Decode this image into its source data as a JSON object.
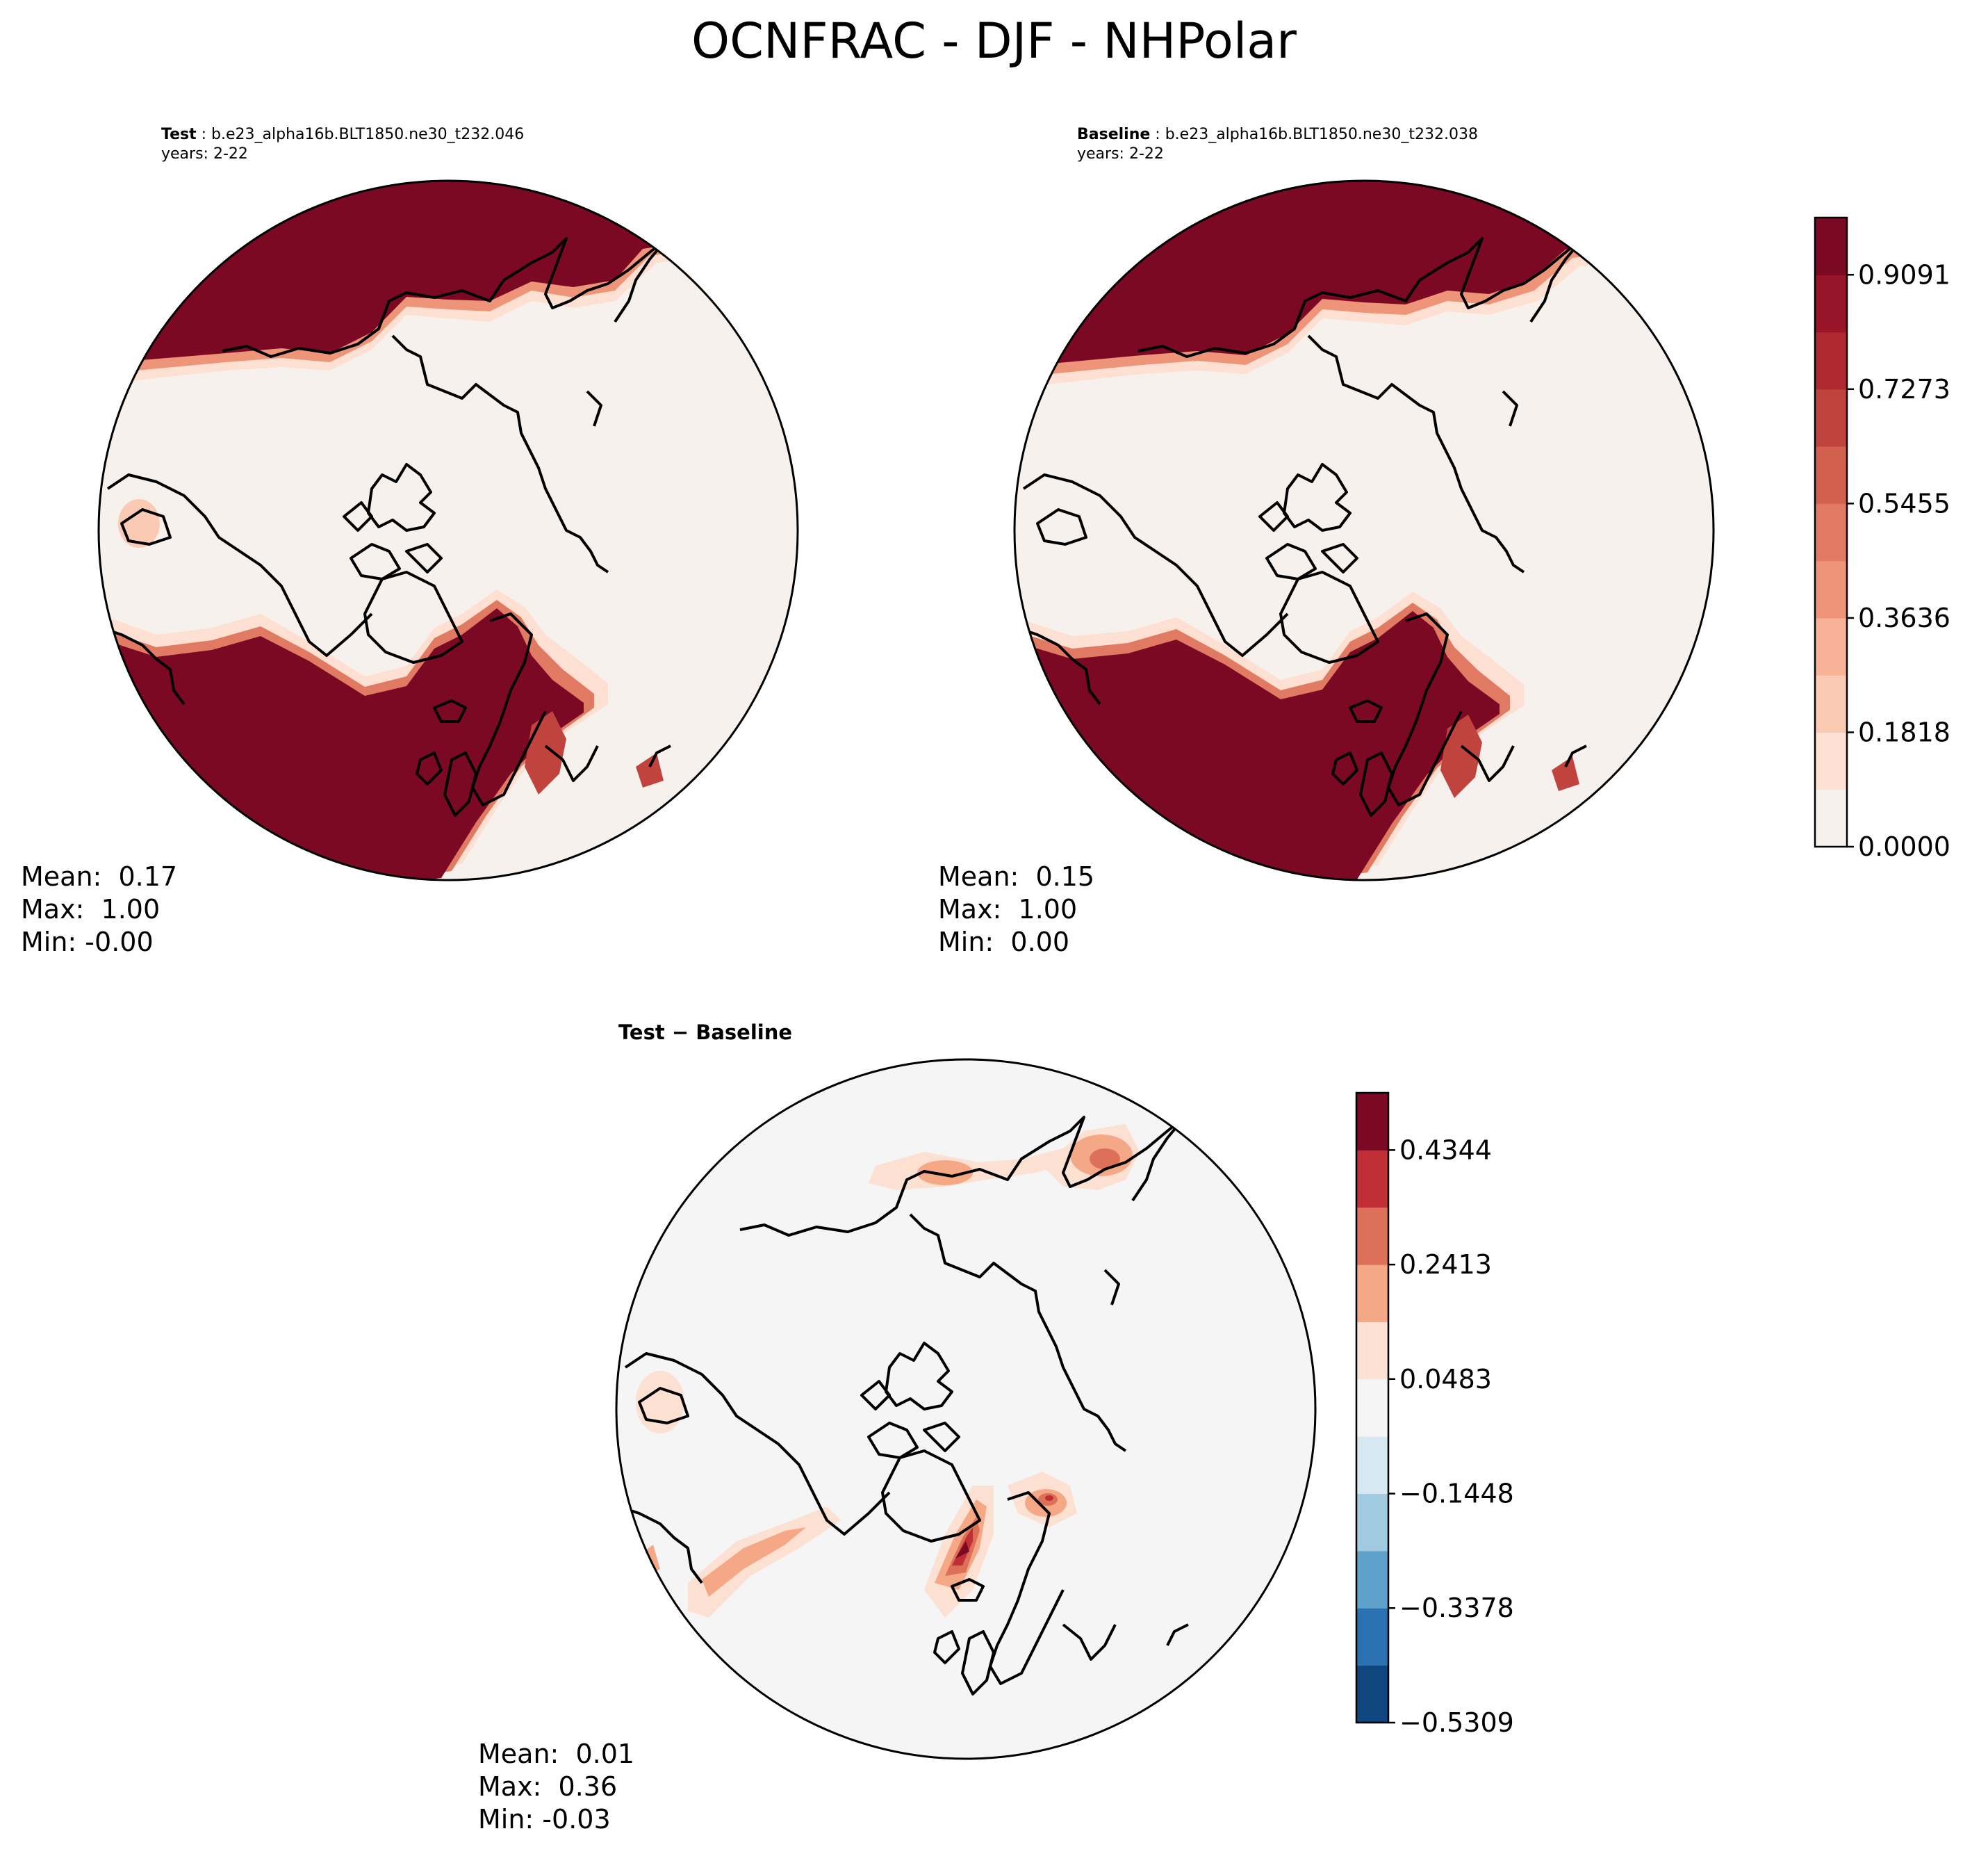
{
  "title": "OCNFRAC - DJF - NHPolar",
  "panels": {
    "test": {
      "label": "Test",
      "case": "b.e23_alpha16b.BLT1850.ne30_t232.046",
      "years": "years: 2-22",
      "mean": "Mean:  0.17",
      "max": "Max:  1.00",
      "min": "Min: -0.00"
    },
    "baseline": {
      "label": "Baseline",
      "case": "b.e23_alpha16b.BLT1850.ne30_t232.038",
      "years": "years: 2-22",
      "mean": "Mean:  0.15",
      "max": "Max:  1.00",
      "min": "Min:  0.00"
    },
    "diff": {
      "label": "Test − Baseline",
      "mean": "Mean:  0.01",
      "max": "Max:  0.36",
      "min": "Min: -0.03"
    }
  },
  "chart_data": [
    {
      "type": "heatmap",
      "title": "Test",
      "projection": "north polar stereographic",
      "colormap": "Reds",
      "colorbar": {
        "levels": [
          0.0,
          0.0909,
          0.1818,
          0.2727,
          0.3636,
          0.4545,
          0.5455,
          0.6364,
          0.7273,
          0.8182,
          0.9091,
          1.0
        ],
        "tick_labels": [
          "0.0000",
          "0.1818",
          "0.3636",
          "0.5455",
          "0.7273",
          "0.9091"
        ],
        "colors": [
          "#f7f1ee",
          "#fde0d2",
          "#fbcab2",
          "#f8b297",
          "#ee9579",
          "#e07a62",
          "#d1604e",
          "#c1433e",
          "#ae2830",
          "#981428",
          "#7b0924"
        ]
      },
      "stats": {
        "mean": 0.17,
        "max": 1.0,
        "min": -0.0
      }
    },
    {
      "type": "heatmap",
      "title": "Baseline",
      "projection": "north polar stereographic",
      "colormap": "Reds",
      "colorbar": "shared with Test",
      "stats": {
        "mean": 0.15,
        "max": 1.0,
        "min": 0.0
      }
    },
    {
      "type": "heatmap",
      "title": "Test − Baseline",
      "projection": "north polar stereographic",
      "colormap": "RdBu_r",
      "colorbar": {
        "levels": [
          -0.5309,
          -0.4344,
          -0.3378,
          -0.2413,
          -0.1448,
          -0.0483,
          0.0483,
          0.1448,
          0.2413,
          0.3378,
          0.4344,
          0.5309
        ],
        "tick_labels": [
          "−0.5309",
          "−0.3378",
          "−0.1448",
          "0.0483",
          "0.2413",
          "0.4344"
        ],
        "colors": [
          "#0f4680",
          "#2b71b1",
          "#5ea2cb",
          "#9fcae0",
          "#d7e8f2",
          "#f5f5f5",
          "#fce0d2",
          "#f4a886",
          "#dd7059",
          "#bf2f35",
          "#7b0923"
        ]
      },
      "stats": {
        "mean": 0.01,
        "max": 0.36,
        "min": -0.03
      }
    }
  ]
}
